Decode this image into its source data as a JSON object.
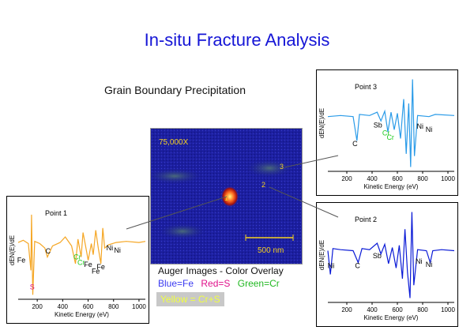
{
  "title": "In-situ Fracture Analysis",
  "subtitle": "Grain Boundary Precipitation",
  "micrograph": {
    "magnification": "75,000X",
    "scalebar_label": "500 nm",
    "point_labels": [
      "1",
      "2",
      "3"
    ]
  },
  "caption": "Auger Images - Color Overlay",
  "legend": {
    "fe": "Blue=Fe",
    "s": "Red=S",
    "cr": "Green=Cr",
    "crs": "Yellow = Cr+S"
  },
  "colors": {
    "title": "#1515d6",
    "point1": "#f5a623",
    "point2": "#0a1ad6",
    "point3": "#2a9be8",
    "cr": "#22cc22",
    "s": "#e0108a"
  },
  "chart_data": [
    {
      "type": "line",
      "name": "Point 1",
      "xlabel": "Kinetic Energy (eV)",
      "ylabel": "dEN(E)/dE",
      "xlim": [
        50,
        1050
      ],
      "ticks": [
        200,
        400,
        600,
        800,
        1000
      ],
      "color": "#f5a623",
      "points": [
        [
          50,
          0.35
        ],
        [
          90,
          0.45
        ],
        [
          130,
          0.3
        ],
        [
          150,
          -0.9
        ],
        [
          155,
          1.6
        ],
        [
          165,
          -2.0
        ],
        [
          180,
          0.4
        ],
        [
          220,
          0.3
        ],
        [
          260,
          0.1
        ],
        [
          280,
          -0.3
        ],
        [
          320,
          0.2
        ],
        [
          380,
          0.35
        ],
        [
          420,
          0.6
        ],
        [
          470,
          0.2
        ],
        [
          500,
          -0.6
        ],
        [
          520,
          0.5
        ],
        [
          545,
          -0.3
        ],
        [
          560,
          0.8
        ],
        [
          580,
          0.2
        ],
        [
          600,
          -0.45
        ],
        [
          625,
          0.3
        ],
        [
          640,
          -0.2
        ],
        [
          660,
          0.9
        ],
        [
          680,
          0.1
        ],
        [
          700,
          -0.6
        ],
        [
          715,
          1.0
        ],
        [
          730,
          0.1
        ],
        [
          760,
          0.25
        ],
        [
          820,
          0.35
        ],
        [
          900,
          0.4
        ],
        [
          1000,
          0.35
        ],
        [
          1050,
          0.4
        ]
      ],
      "labels": [
        {
          "text": "Fe",
          "x": 75,
          "y": -0.55
        },
        {
          "text": "S",
          "x": 160,
          "y": -1.75,
          "color": "#e0108a"
        },
        {
          "text": "C",
          "x": 285,
          "y": -0.15
        },
        {
          "text": "Cr",
          "x": 515,
          "y": -0.4,
          "color": "#22cc22"
        },
        {
          "text": "Cr",
          "x": 545,
          "y": -0.65,
          "color": "#22cc22"
        },
        {
          "text": "Fe",
          "x": 600,
          "y": -0.75
        },
        {
          "text": "Fe",
          "x": 660,
          "y": -1.05
        },
        {
          "text": "Fe",
          "x": 700,
          "y": -0.85
        },
        {
          "text": "Ni",
          "x": 770,
          "y": 0.0
        },
        {
          "text": "Ni",
          "x": 830,
          "y": -0.1
        }
      ]
    },
    {
      "type": "line",
      "name": "Point 2",
      "xlabel": "Kinetic Energy (eV)",
      "ylabel": "dEN(E)/dE",
      "xlim": [
        50,
        1050
      ],
      "ticks": [
        200,
        400,
        600,
        800,
        1000
      ],
      "color": "#0a1ad6",
      "points": [
        [
          50,
          0.2
        ],
        [
          70,
          -0.9
        ],
        [
          90,
          0.3
        ],
        [
          150,
          0.25
        ],
        [
          250,
          0.2
        ],
        [
          290,
          -0.35
        ],
        [
          320,
          0.3
        ],
        [
          380,
          0.25
        ],
        [
          440,
          0.55
        ],
        [
          470,
          0.05
        ],
        [
          500,
          0.5
        ],
        [
          530,
          -0.4
        ],
        [
          560,
          0.35
        ],
        [
          590,
          -0.6
        ],
        [
          615,
          0.45
        ],
        [
          640,
          -1.1
        ],
        [
          660,
          1.2
        ],
        [
          680,
          -0.8
        ],
        [
          700,
          -2.0
        ],
        [
          715,
          2.0
        ],
        [
          730,
          -1.4
        ],
        [
          760,
          0.25
        ],
        [
          830,
          0.2
        ],
        [
          860,
          -0.35
        ],
        [
          880,
          0.2
        ],
        [
          950,
          0.25
        ],
        [
          1050,
          0.2
        ]
      ],
      "labels": [
        {
          "text": "Ni",
          "x": 75,
          "y": -0.6
        },
        {
          "text": "C",
          "x": 285,
          "y": -0.6
        },
        {
          "text": "Sb",
          "x": 440,
          "y": -0.15
        },
        {
          "text": "Ni",
          "x": 770,
          "y": -0.4
        },
        {
          "text": "Ni",
          "x": 850,
          "y": -0.55
        }
      ]
    },
    {
      "type": "line",
      "name": "Point 3",
      "xlabel": "Kinetic Energy (eV)",
      "ylabel": "dEN(E)/dE",
      "xlim": [
        50,
        1050
      ],
      "ticks": [
        200,
        400,
        600,
        800,
        1000
      ],
      "color": "#2a9be8",
      "points": [
        [
          50,
          0.3
        ],
        [
          150,
          0.35
        ],
        [
          250,
          0.3
        ],
        [
          280,
          -0.8
        ],
        [
          300,
          0.4
        ],
        [
          380,
          0.35
        ],
        [
          440,
          0.5
        ],
        [
          470,
          0.1
        ],
        [
          500,
          0.55
        ],
        [
          525,
          -0.4
        ],
        [
          550,
          0.5
        ],
        [
          575,
          -0.3
        ],
        [
          600,
          0.45
        ],
        [
          625,
          -0.7
        ],
        [
          650,
          1.1
        ],
        [
          670,
          -1.4
        ],
        [
          690,
          0.9
        ],
        [
          705,
          -2.0
        ],
        [
          720,
          2.0
        ],
        [
          735,
          -1.5
        ],
        [
          760,
          0.35
        ],
        [
          850,
          0.3
        ],
        [
          900,
          0.4
        ],
        [
          1050,
          0.35
        ]
      ],
      "labels": [
        {
          "text": "Sb",
          "x": 445,
          "y": -0.2
        },
        {
          "text": "Cr",
          "x": 510,
          "y": -0.55,
          "color": "#22cc22"
        },
        {
          "text": "Cr",
          "x": 545,
          "y": -0.75,
          "color": "#22cc22"
        },
        {
          "text": "C",
          "x": 265,
          "y": -1.05
        },
        {
          "text": "Ni",
          "x": 780,
          "y": -0.25
        },
        {
          "text": "Ni",
          "x": 850,
          "y": -0.4
        }
      ]
    }
  ]
}
